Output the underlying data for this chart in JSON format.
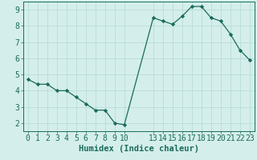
{
  "x": [
    0,
    1,
    2,
    3,
    4,
    5,
    6,
    7,
    8,
    9,
    10,
    13,
    14,
    15,
    16,
    17,
    18,
    19,
    20,
    21,
    22,
    23
  ],
  "y": [
    4.7,
    4.4,
    4.4,
    4.0,
    4.0,
    3.6,
    3.2,
    2.8,
    2.8,
    2.0,
    1.9,
    8.5,
    8.3,
    8.1,
    8.6,
    9.2,
    9.2,
    8.5,
    8.3,
    7.5,
    6.5,
    5.9
  ],
  "line_color": "#1a6b5a",
  "marker": "D",
  "marker_size": 2.2,
  "bg_color": "#d4eeeb",
  "grid_color": "#b8ddd9",
  "xlabel": "Humidex (Indice chaleur)",
  "xlim": [
    -0.5,
    23.5
  ],
  "ylim": [
    1.5,
    9.5
  ],
  "xticks": [
    0,
    1,
    2,
    3,
    4,
    5,
    6,
    7,
    8,
    9,
    10,
    13,
    14,
    15,
    16,
    17,
    18,
    19,
    20,
    21,
    22,
    23
  ],
  "yticks": [
    2,
    3,
    4,
    5,
    6,
    7,
    8,
    9
  ],
  "tick_color": "#1a6b5a",
  "xlabel_fontsize": 7.5,
  "tick_fontsize": 7.0
}
